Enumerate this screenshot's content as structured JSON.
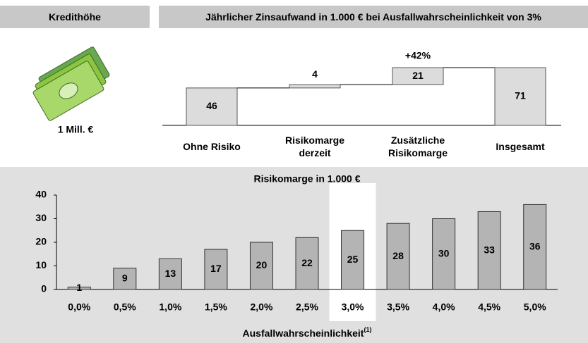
{
  "left_panel": {
    "header": "Kredithöhe",
    "caption": "1 Mill. €"
  },
  "chart_data": [
    {
      "type": "waterfall",
      "title": "Jährlicher Zinsaufwand in 1.000 € bei Ausfallwahrscheinlichkeit von 3%",
      "categories": [
        "Ohne Risiko",
        "Risikomarge derzeit",
        "Zusätzliche Risikomarge",
        "Insgesamt"
      ],
      "values": [
        46,
        4,
        21,
        71
      ],
      "total_last": true,
      "color": "#dcdcdc",
      "annotation": "+42%"
    },
    {
      "type": "bar",
      "title": "Risikomarge in 1.000 €",
      "categories": [
        "0,0%",
        "0,5%",
        "1,0%",
        "1,5%",
        "2,0%",
        "2,5%",
        "3,0%",
        "3,5%",
        "4,0%",
        "4,5%",
        "5,0%"
      ],
      "values": [
        1,
        9,
        13,
        17,
        20,
        22,
        25,
        28,
        30,
        33,
        36
      ],
      "color": "#b4b4b4",
      "highlight_index": 6,
      "ylim": [
        0,
        40
      ],
      "yticks": [
        0,
        10,
        20,
        30,
        40
      ],
      "xlabel": "Ausfallwahrscheinlichkeit",
      "xlabel_note": "(1)",
      "grid": false
    }
  ]
}
